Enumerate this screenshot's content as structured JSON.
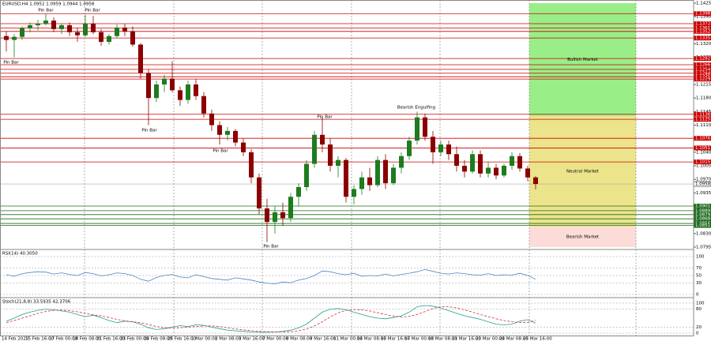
{
  "chart_data": [
    {
      "type": "candlestick",
      "title": "EURUSD,H4 1.0952 1.0959 1.0944 1.0958",
      "up_color": "#1e7b1e",
      "down_color": "#8b0000",
      "ylim": [
        1.0795,
        1.1425
      ],
      "yticks": [
        1.0795,
        {
          "value": 1.083,
          "label": "1.0830"
        },
        1.0865,
        {
          "value": 1.09,
          "label": "1.0900"
        },
        1.0935,
        {
          "value": 1.097,
          "label": "1.0970"
        },
        1.1005,
        {
          "value": 1.104,
          "label": "1.1040"
        },
        1.1075,
        {
          "value": 1.111,
          "label": "1.1110"
        },
        1.1145,
        {
          "value": 1.118,
          "label": "1.1180"
        },
        1.1215,
        {
          "value": 1.125,
          "label": "1.1250"
        },
        1.1285,
        {
          "value": 1.132,
          "label": "1.1320"
        },
        1.1355,
        {
          "value": 1.139,
          "label": "1.1390"
        },
        1.1425
      ],
      "x_labels": [
        "14 Feb 2022",
        "15 Feb 16:00",
        "17 Feb 00:00",
        "18 Feb 08:00",
        "21 Feb 16:00",
        "23 Feb 00:00",
        "24 Feb 08:00",
        "25 Feb 16:00",
        "1 Mar 00:00",
        "2 Mar 08:00",
        "3 Mar 16:00",
        "7 Mar 00:00",
        "8 Mar 08:00",
        "9 Mar 16:00",
        "11 Mar 00:00",
        "14 Mar 08:00",
        "15 Mar 16:00",
        "17 Mar 00:00",
        "18 Mar 08:00",
        "21 Mar 16:00",
        "23 Mar 00:00",
        "24 Mar 08:00",
        "25 Mar 16:00"
      ],
      "ohlc": [
        [
          1.134,
          1.1352,
          1.13,
          1.133
        ],
        [
          1.133,
          1.1345,
          1.1285,
          1.1338
        ],
        [
          1.1338,
          1.1365,
          1.133,
          1.136
        ],
        [
          1.136,
          1.1375,
          1.135,
          1.1368
        ],
        [
          1.1368,
          1.1382,
          1.1355,
          1.1372
        ],
        [
          1.1372,
          1.1398,
          1.1368,
          1.138
        ],
        [
          1.138,
          1.1388,
          1.135,
          1.1358
        ],
        [
          1.1358,
          1.1372,
          1.1345,
          1.1368
        ],
        [
          1.1368,
          1.1375,
          1.134,
          1.135
        ],
        [
          1.135,
          1.1362,
          1.1325,
          1.1342
        ],
        [
          1.1342,
          1.1395,
          1.1338,
          1.1372
        ],
        [
          1.1372,
          1.1392,
          1.1345,
          1.135
        ],
        [
          1.135,
          1.1358,
          1.1315,
          1.1325
        ],
        [
          1.1325,
          1.1345,
          1.1318,
          1.134
        ],
        [
          1.134,
          1.137,
          1.1335,
          1.1362
        ],
        [
          1.1362,
          1.1372,
          1.134,
          1.1352
        ],
        [
          1.1352,
          1.1365,
          1.1312,
          1.1318
        ],
        [
          1.1318,
          1.1322,
          1.123,
          1.1245
        ],
        [
          1.1245,
          1.1255,
          1.111,
          1.118
        ],
        [
          1.118,
          1.1225,
          1.117,
          1.1215
        ],
        [
          1.1215,
          1.124,
          1.1195,
          1.123
        ],
        [
          1.123,
          1.1275,
          1.1195,
          1.12
        ],
        [
          1.12,
          1.121,
          1.116,
          1.1175
        ],
        [
          1.1175,
          1.1225,
          1.1165,
          1.1215
        ],
        [
          1.1215,
          1.123,
          1.1175,
          1.1185
        ],
        [
          1.1185,
          1.1195,
          1.113,
          1.114
        ],
        [
          1.114,
          1.115,
          1.1095,
          1.111
        ],
        [
          1.111,
          1.112,
          1.106,
          1.1085
        ],
        [
          1.1085,
          1.1105,
          1.107,
          1.1095
        ],
        [
          1.1095,
          1.11,
          1.1055,
          1.1065
        ],
        [
          1.1065,
          1.1075,
          1.103,
          1.104
        ],
        [
          1.104,
          1.1048,
          1.096,
          1.0975
        ],
        [
          1.0975,
          1.0985,
          1.088,
          1.0895
        ],
        [
          1.0895,
          1.092,
          1.0808,
          1.086
        ],
        [
          1.086,
          1.09,
          1.083,
          1.0885
        ],
        [
          1.0885,
          1.091,
          1.085,
          1.087
        ],
        [
          1.087,
          1.0935,
          1.086,
          1.0925
        ],
        [
          1.0925,
          1.096,
          1.09,
          1.095
        ],
        [
          1.095,
          1.102,
          1.094,
          1.101
        ],
        [
          1.101,
          1.1095,
          1.1,
          1.1085
        ],
        [
          1.1085,
          1.113,
          1.104,
          1.106
        ],
        [
          1.106,
          1.1075,
          1.099,
          1.1005
        ],
        [
          1.1005,
          1.103,
          1.0975,
          1.102
        ],
        [
          1.102,
          1.1025,
          1.091,
          1.0925
        ],
        [
          1.0925,
          1.0955,
          1.0905,
          1.0945
        ],
        [
          1.0945,
          1.099,
          1.093,
          1.0975
        ],
        [
          1.0975,
          1.1,
          1.094,
          1.0955
        ],
        [
          1.0955,
          1.103,
          1.095,
          1.102
        ],
        [
          1.102,
          1.1035,
          1.0945,
          1.096
        ],
        [
          1.096,
          1.101,
          1.0955,
          1.1
        ],
        [
          1.1,
          1.104,
          1.0985,
          1.103
        ],
        [
          1.103,
          1.108,
          1.102,
          1.107
        ],
        [
          1.107,
          1.1145,
          1.106,
          1.113
        ],
        [
          1.113,
          1.114,
          1.107,
          1.108
        ],
        [
          1.108,
          1.1095,
          1.101,
          1.104
        ],
        [
          1.104,
          1.107,
          1.103,
          1.106
        ],
        [
          1.106,
          1.107,
          1.102,
          1.1035
        ],
        [
          1.1035,
          1.1055,
          1.099,
          1.1005
        ],
        [
          1.1005,
          1.102,
          1.0975,
          1.099
        ],
        [
          1.099,
          1.1045,
          1.0985,
          1.1035
        ],
        [
          1.1035,
          1.1045,
          1.0975,
          1.0985
        ],
        [
          1.0985,
          1.1015,
          1.0975,
          1.1
        ],
        [
          1.1,
          1.101,
          1.097,
          1.098
        ],
        [
          1.098,
          1.101,
          1.0975,
          1.1005
        ],
        [
          1.1005,
          1.104,
          1.0995,
          1.103
        ],
        [
          1.103,
          1.1038,
          1.099,
          1.0998
        ],
        [
          1.0998,
          1.1005,
          1.0965,
          1.0975
        ],
        [
          1.0975,
          1.0978,
          1.0944,
          1.0958
        ]
      ],
      "levels": [
        {
          "value": 1.1398,
          "color": "#cc0000"
        },
        {
          "value": 1.1372,
          "color": "#cc0000"
        },
        {
          "value": 1.1361,
          "color": "#cc0000"
        },
        {
          "value": 1.1352,
          "color": "#cc0000"
        },
        {
          "value": 1.1335,
          "color": "#cc0000"
        },
        {
          "value": 1.1282,
          "color": "#cc0000"
        },
        {
          "value": 1.1266,
          "color": "#cc0000"
        },
        {
          "value": 1.1254,
          "color": "#cc0000"
        },
        {
          "value": 1.1244,
          "color": "#cc0000"
        },
        {
          "value": 1.1235,
          "color": "#cc0000"
        },
        {
          "value": 1.1229,
          "color": "#cc0000"
        },
        {
          "value": 1.1138,
          "color": "#cc0000"
        },
        {
          "value": 1.1125,
          "color": "#cc0000"
        },
        {
          "value": 1.1076,
          "color": "#cc0000"
        },
        {
          "value": 1.1051,
          "color": "#cc0000"
        },
        {
          "value": 1.1015,
          "color": "#cc0000"
        },
        {
          "value": 1.0901,
          "color": "#1e6b1e"
        },
        {
          "value": 1.0889,
          "color": "#1e6b1e"
        },
        {
          "value": 1.0879,
          "color": "#1e6b1e"
        },
        {
          "value": 1.0868,
          "color": "#1e6b1e"
        },
        {
          "value": 1.0856,
          "color": "#1e6b1e"
        },
        {
          "value": 1.0851,
          "color": "#1e6b1e"
        }
      ],
      "current_price": 1.0958,
      "zones": [
        {
          "label": "Bullish Market",
          "from": 1.1425,
          "to": 1.1133,
          "color": "#99ee88"
        },
        {
          "label": "Neutral Market",
          "from": 1.1133,
          "to": 1.0848,
          "color": "#ece48a"
        },
        {
          "label": "Bearish Market",
          "from": 1.0848,
          "to": 1.0795,
          "color": "#fbdcd8"
        }
      ],
      "annotations": [
        "Pin Bar",
        "Pin Bar",
        "Pin Bar",
        "Pin Bar",
        "Pin Bar",
        "Pin Bar",
        "Pin Bar",
        "Bearish Engulfing"
      ]
    },
    {
      "type": "line",
      "title": "RSI(14) 40.3050",
      "ylim": [
        0,
        100
      ],
      "yticks": [
        0,
        30,
        50,
        70,
        100
      ],
      "series": [
        {
          "color": "#4a86c8",
          "values": [
            52,
            48,
            55,
            58,
            60,
            59,
            54,
            57,
            53,
            50,
            58,
            55,
            49,
            52,
            57,
            55,
            50,
            40,
            35,
            45,
            50,
            53,
            46,
            44,
            52,
            47,
            42,
            40,
            38,
            44,
            41,
            38,
            33,
            30,
            28,
            33,
            31,
            38,
            42,
            50,
            62,
            60,
            55,
            52,
            56,
            48,
            50,
            49,
            54,
            49,
            53,
            56,
            60,
            66,
            61,
            56,
            54,
            57,
            55,
            52,
            51,
            55,
            50,
            52,
            51,
            56,
            50,
            40.3
          ]
        }
      ]
    },
    {
      "type": "line",
      "title": "Stoch(21,8,8) 33.5935 42.3706",
      "ylim": [
        0,
        100
      ],
      "yticks": [
        0,
        20,
        80,
        100
      ],
      "series": [
        {
          "color": "#20a090",
          "values": [
            40,
            50,
            62,
            70,
            76,
            80,
            78,
            74,
            70,
            62,
            55,
            60,
            52,
            42,
            35,
            40,
            38,
            30,
            18,
            12,
            15,
            20,
            25,
            22,
            28,
            26,
            20,
            15,
            10,
            8,
            6,
            4,
            3,
            3,
            4,
            6,
            10,
            18,
            30,
            50,
            70,
            80,
            82,
            78,
            70,
            62,
            55,
            50,
            48,
            52,
            58,
            70,
            88,
            92,
            90,
            84,
            75,
            66,
            58,
            52,
            46,
            38,
            30,
            28,
            30,
            40,
            45,
            33.6
          ]
        },
        {
          "color": "#d03030",
          "dashed": true,
          "values": [
            35,
            42,
            50,
            58,
            66,
            72,
            76,
            77,
            75,
            71,
            66,
            61,
            58,
            52,
            46,
            41,
            38,
            35,
            29,
            22,
            18,
            17,
            18,
            20,
            22,
            24,
            24,
            22,
            18,
            14,
            11,
            8,
            6,
            5,
            4,
            4,
            5,
            8,
            14,
            24,
            38,
            54,
            68,
            76,
            79,
            78,
            74,
            68,
            62,
            57,
            54,
            56,
            62,
            72,
            82,
            88,
            88,
            84,
            78,
            70,
            62,
            55,
            48,
            42,
            38,
            35,
            36,
            42.4
          ]
        }
      ]
    }
  ]
}
